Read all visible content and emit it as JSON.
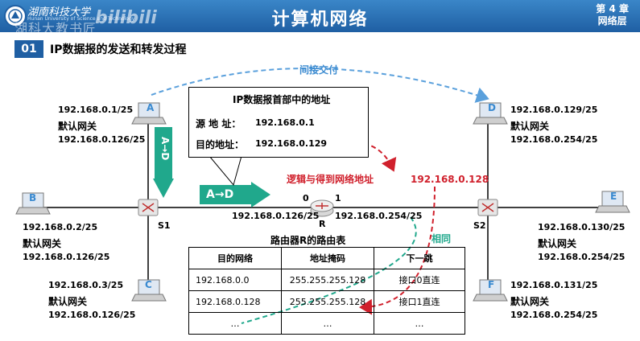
{
  "header": {
    "logo_text": "湖南科技大学",
    "logo_subtitle": "Hunan University of Science and Technology",
    "watermark": "湖科大教书匠",
    "watermark_bili": "bilibili",
    "title": "计算机网络",
    "chapter": "第 4 章",
    "chapter_name": "网络层"
  },
  "section": {
    "number": "01",
    "title": "IP数据报的发送和转发过程"
  },
  "indirect_delivery": "间接交付",
  "hosts": {
    "A": {
      "letter": "A",
      "ip": "192.168.0.1/25",
      "gw_label": "默认网关",
      "gw": "192.168.0.126/25"
    },
    "B": {
      "letter": "B",
      "ip": "192.168.0.2/25",
      "gw_label": "默认网关",
      "gw": "192.168.0.126/25"
    },
    "C": {
      "letter": "C",
      "ip": "192.168.0.3/25",
      "gw_label": "默认网关",
      "gw": "192.168.0.126/25"
    },
    "D": {
      "letter": "D",
      "ip": "192.168.0.129/25",
      "gw_label": "默认网关",
      "gw": "192.168.0.254/25"
    },
    "E": {
      "letter": "E",
      "ip": "192.168.0.130/25",
      "gw_label": "默认网关",
      "gw": "192.168.0.254/25"
    },
    "F": {
      "letter": "F",
      "ip": "192.168.0.131/25",
      "gw_label": "默认网关",
      "gw": "192.168.0.254/25"
    }
  },
  "switches": {
    "s1": "S1",
    "s2": "S2"
  },
  "router": {
    "name": "R",
    "port0": "0",
    "port1": "1",
    "ip0": "192.168.0.126/25",
    "ip1": "192.168.0.254/25"
  },
  "ip_header": {
    "title": "IP数据报首部中的地址",
    "src_label": "源 地 址：",
    "src": "192.168.0.1",
    "dst_label": "目的地址：",
    "dst": "192.168.0.129"
  },
  "arrows": {
    "a_to_d_vertical": "A→D",
    "a_to_d_horizontal": "A→D"
  },
  "annotations": {
    "and_network": "逻辑与得到网络地址",
    "result": "192.168.0.128",
    "same": "相同"
  },
  "routing_table": {
    "title": "路由器R的路由表",
    "headers": [
      "目的网络",
      "地址掩码",
      "下一跳"
    ],
    "rows": [
      [
        "192.168.0.0",
        "255.255.255.128",
        "接口0直连"
      ],
      [
        "192.168.0.128",
        "255.255.255.128",
        "接口1直连"
      ],
      [
        "…",
        "…",
        "…"
      ]
    ]
  },
  "colors": {
    "header_blue": "#1f5fa3",
    "arrow_green": "#20a88c",
    "annotation_red": "#d0202c",
    "dashed_blue": "#5aa0dc"
  }
}
